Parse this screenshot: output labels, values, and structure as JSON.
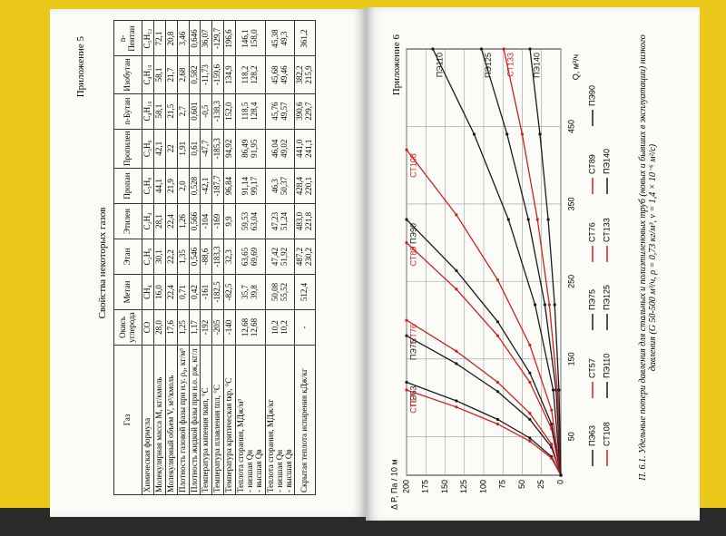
{
  "left_page": {
    "header": "Приложение 5",
    "title": "Свойства некоторых газов",
    "table": {
      "header": [
        "Газ",
        "Окись углерода",
        "Метан",
        "Этан",
        "Этилен",
        "Пропан",
        "Пропилен",
        "n-Бутан",
        "Изобутан",
        "n-Пентан"
      ],
      "rows": [
        [
          "Химическая формула",
          "CO",
          "CH₄",
          "C₂H₆",
          "C₂H₄",
          "C₃H₈",
          "C₃H₆",
          "C₄H₁₀",
          "C₄H₁₀",
          "C₅H₁₂"
        ],
        [
          "Молекулярная масса M, кг/кмоль",
          "28,0",
          "16,0",
          "30,1",
          "28,1",
          "44,1",
          "42,1",
          "58,1",
          "58,1",
          "72,1"
        ],
        [
          "Молекулярный объем V, м³/кмоль",
          "17,6",
          "22,4",
          "22,2",
          "22,4",
          "21,9",
          "22",
          "21,5",
          "21,7",
          "20,8"
        ],
        [
          "Плотность газовой фазы при н.у. ρ₀, кг/м³",
          "1,25",
          "0,71",
          "1,35",
          "1,26",
          "2,0",
          "1,91",
          "2,7",
          "2,68",
          "3,46"
        ],
        [
          "Плотность жидкой фазы при н.о. ρж, кг/л",
          "1,17",
          "0,42",
          "0,546",
          "0,566",
          "0,528",
          "0,61",
          "0,601",
          "0,582",
          "0,646"
        ],
        [
          "Температура кипения tкип, °С",
          "-192",
          "-161",
          "-88,6",
          "-104",
          "-42,1",
          "-47,7",
          "-0,5",
          "-11,73",
          "36,07"
        ],
        [
          "Температура плавления tпл, °С",
          "-205",
          "-182,5",
          "-183,3",
          "-169",
          "-187,7",
          "-185,3",
          "-138,3",
          "-159,6",
          "-129,7"
        ],
        [
          "Температура критическая tкр, °С",
          "-140",
          "-82,5",
          "32,3",
          "9,9",
          "96,84",
          "94,92",
          "152,0",
          "134,9",
          "196,6"
        ],
        [
          [
            "Теплота сгорания, МДж/м³",
            "- низшая Qн",
            "- высшая Qв"
          ],
          [
            "12,68",
            "12,68"
          ],
          [
            "35,7",
            "39,8"
          ],
          [
            "63,65",
            "69,69"
          ],
          [
            "59,53",
            "63,04"
          ],
          [
            "91,14",
            "99,17"
          ],
          [
            "86,49",
            "91,95"
          ],
          [
            "118,5",
            "128,4"
          ],
          [
            "118,2",
            "128,2"
          ],
          [
            "146,1",
            "158,0"
          ]
        ],
        [
          [
            "Теплота сгорания, МДж/кг",
            "- низшая Qн",
            "- высшая Qв"
          ],
          [
            "10,2",
            "10,2"
          ],
          [
            "50,08",
            "55,52"
          ],
          [
            "47,42",
            "51,92"
          ],
          [
            "47,23",
            "51,24"
          ],
          [
            "46,3",
            "50,37"
          ],
          [
            "46,04",
            "49,02"
          ],
          [
            "45,76",
            "49,57"
          ],
          [
            "45,68",
            "49,46"
          ],
          [
            "45,38",
            "49,3"
          ]
        ],
        [
          "Скрытая теплота испарения кДж/кг",
          "-",
          "512,4",
          [
            "487,2",
            "230,2"
          ],
          [
            "483,0",
            "221,8"
          ],
          [
            "428,4",
            "220,1"
          ],
          [
            "441,0",
            "241,1"
          ],
          [
            "390,6",
            "229,7"
          ],
          [
            "382,2",
            "215,9"
          ],
          "361,2"
        ]
      ]
    }
  },
  "right_page": {
    "header": "Приложение 6",
    "chart_data": {
      "type": "line",
      "x_label": "Q, м³/ч",
      "y_label": "Δ P, Па / 10 м",
      "xlim": [
        0,
        550
      ],
      "ylim": [
        0,
        200
      ],
      "xticks": [
        50,
        150,
        250,
        350,
        450
      ],
      "yticks": [
        0,
        25,
        50,
        75,
        100,
        125,
        150,
        175,
        200
      ],
      "grid": true,
      "series": [
        {
          "name": "ПЭ63",
          "color": "#1a1a1a",
          "x": [
            0,
            24,
            48,
            72,
            96,
            120
          ],
          "values": [
            0,
            12,
            40.2,
            81.8,
            135.4,
            200
          ]
        },
        {
          "name": "СТ57",
          "color": "#d02020",
          "x": [
            0,
            22,
            44,
            66,
            88,
            110
          ],
          "values": [
            0,
            12,
            40.2,
            81.8,
            135.4,
            200
          ]
        },
        {
          "name": "ПЭ75",
          "color": "#1a1a1a",
          "x": [
            0,
            36,
            72,
            108,
            144,
            180
          ],
          "values": [
            0,
            12,
            40.2,
            81.8,
            135.4,
            200
          ]
        },
        {
          "name": "СТ76",
          "color": "#d02020",
          "x": [
            0,
            40,
            80,
            120,
            160,
            200
          ],
          "values": [
            0,
            12,
            40.2,
            81.8,
            135.4,
            200
          ]
        },
        {
          "name": "СТ89",
          "color": "#d02020",
          "x": [
            0,
            60,
            120,
            180,
            240,
            300
          ],
          "values": [
            0,
            12,
            40.2,
            81.8,
            135.4,
            200
          ]
        },
        {
          "name": "ПЭ90",
          "color": "#1a1a1a",
          "x": [
            0,
            66,
            132,
            198,
            264,
            330
          ],
          "values": [
            0,
            12,
            40.2,
            81.8,
            135.4,
            200
          ]
        },
        {
          "name": "СТ108",
          "color": "#d02020",
          "x": [
            0,
            84,
            168,
            252,
            336,
            420
          ],
          "values": [
            0,
            12,
            40.2,
            81.8,
            135.4,
            200
          ]
        },
        {
          "name": "ПЭ110",
          "color": "#1a1a1a",
          "x": [
            0,
            110,
            220,
            330,
            440,
            550
          ],
          "values": [
            0,
            9.9,
            33.4,
            67.9,
            112.4,
            166
          ]
        },
        {
          "name": "ПЭ125",
          "color": "#1a1a1a",
          "x": [
            0,
            110,
            220,
            330,
            440,
            550
          ],
          "values": [
            0,
            6.2,
            20.7,
            42.1,
            69.7,
            103
          ]
        },
        {
          "name": "СТ133",
          "color": "#d02020",
          "x": [
            0,
            110,
            220,
            330,
            440,
            550
          ],
          "values": [
            0,
            4.4,
            14.9,
            30.3,
            50.1,
            74
          ]
        },
        {
          "name": "ПЭ140",
          "color": "#1a1a1a",
          "x": [
            0,
            110,
            220,
            330,
            440,
            550
          ],
          "values": [
            0,
            2.4,
            8.0,
            16.4,
            27.1,
            40
          ]
        }
      ]
    },
    "caption": "П. 6.1. Удельные потери давления для стальных и полиэтиленовых труб (новых и бывших в эксплуатации) низкого давления (G 50-500 м³/ч, ρ = 0,73 кг/м³, ν = 1,4 × 10⁻⁶ м²/с)"
  }
}
